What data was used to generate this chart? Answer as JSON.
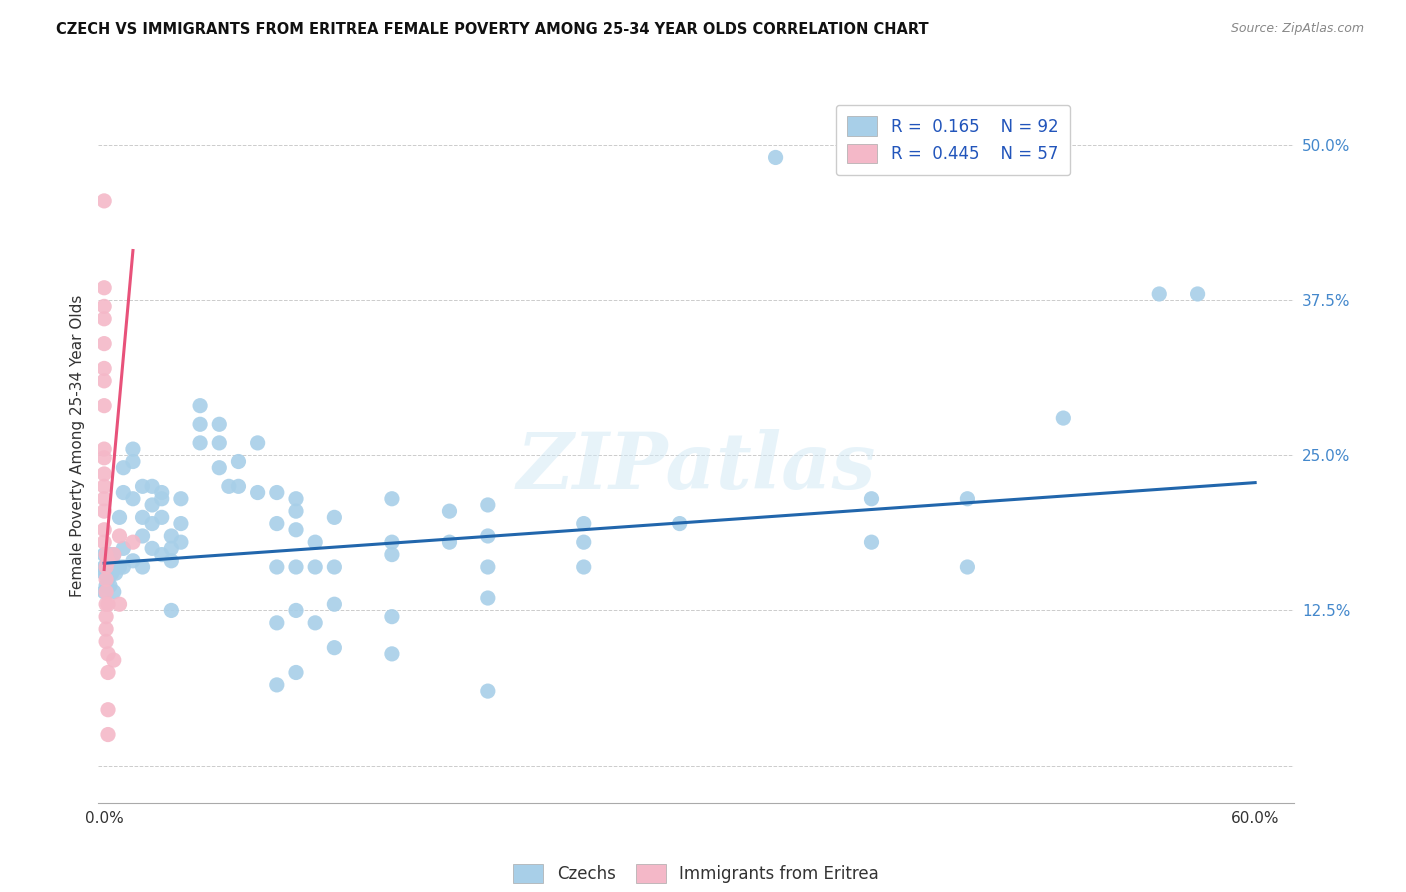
{
  "title": "CZECH VS IMMIGRANTS FROM ERITREA FEMALE POVERTY AMONG 25-34 YEAR OLDS CORRELATION CHART",
  "source": "Source: ZipAtlas.com",
  "ylabel": "Female Poverty Among 25-34 Year Olds",
  "xlim": [
    -0.003,
    0.62
  ],
  "ylim": [
    -0.03,
    0.545
  ],
  "background_color": "#ffffff",
  "grid_color": "#cccccc",
  "watermark": "ZIPatlas",
  "legend_label1": "Czechs",
  "legend_label2": "Immigrants from Eritrea",
  "blue_color": "#a8cfe8",
  "blue_line": "#2166ac",
  "pink_color": "#f4b8c8",
  "pink_line": "#e8527a",
  "blue_scatter": [
    [
      0.0,
      0.16
    ],
    [
      0.0,
      0.14
    ],
    [
      0.0,
      0.155
    ],
    [
      0.0,
      0.17
    ],
    [
      0.001,
      0.16
    ],
    [
      0.001,
      0.145
    ],
    [
      0.001,
      0.155
    ],
    [
      0.002,
      0.15
    ],
    [
      0.002,
      0.165
    ],
    [
      0.002,
      0.155
    ],
    [
      0.003,
      0.16
    ],
    [
      0.003,
      0.145
    ],
    [
      0.003,
      0.17
    ],
    [
      0.004,
      0.155
    ],
    [
      0.004,
      0.165
    ],
    [
      0.005,
      0.17
    ],
    [
      0.005,
      0.14
    ],
    [
      0.006,
      0.155
    ],
    [
      0.008,
      0.2
    ],
    [
      0.008,
      0.16
    ],
    [
      0.01,
      0.22
    ],
    [
      0.01,
      0.24
    ],
    [
      0.01,
      0.16
    ],
    [
      0.01,
      0.175
    ],
    [
      0.015,
      0.245
    ],
    [
      0.015,
      0.255
    ],
    [
      0.015,
      0.215
    ],
    [
      0.015,
      0.165
    ],
    [
      0.02,
      0.225
    ],
    [
      0.02,
      0.2
    ],
    [
      0.02,
      0.185
    ],
    [
      0.02,
      0.16
    ],
    [
      0.025,
      0.225
    ],
    [
      0.025,
      0.21
    ],
    [
      0.025,
      0.195
    ],
    [
      0.025,
      0.175
    ],
    [
      0.03,
      0.22
    ],
    [
      0.03,
      0.2
    ],
    [
      0.03,
      0.215
    ],
    [
      0.03,
      0.17
    ],
    [
      0.035,
      0.185
    ],
    [
      0.035,
      0.175
    ],
    [
      0.035,
      0.165
    ],
    [
      0.035,
      0.125
    ],
    [
      0.04,
      0.215
    ],
    [
      0.04,
      0.195
    ],
    [
      0.04,
      0.18
    ],
    [
      0.05,
      0.275
    ],
    [
      0.05,
      0.29
    ],
    [
      0.05,
      0.26
    ],
    [
      0.06,
      0.275
    ],
    [
      0.06,
      0.26
    ],
    [
      0.06,
      0.24
    ],
    [
      0.065,
      0.225
    ],
    [
      0.07,
      0.245
    ],
    [
      0.07,
      0.225
    ],
    [
      0.08,
      0.26
    ],
    [
      0.08,
      0.22
    ],
    [
      0.09,
      0.22
    ],
    [
      0.09,
      0.195
    ],
    [
      0.09,
      0.16
    ],
    [
      0.09,
      0.115
    ],
    [
      0.09,
      0.065
    ],
    [
      0.1,
      0.215
    ],
    [
      0.1,
      0.205
    ],
    [
      0.1,
      0.19
    ],
    [
      0.1,
      0.16
    ],
    [
      0.1,
      0.125
    ],
    [
      0.1,
      0.075
    ],
    [
      0.11,
      0.18
    ],
    [
      0.11,
      0.16
    ],
    [
      0.11,
      0.115
    ],
    [
      0.12,
      0.2
    ],
    [
      0.12,
      0.16
    ],
    [
      0.12,
      0.13
    ],
    [
      0.12,
      0.095
    ],
    [
      0.15,
      0.215
    ],
    [
      0.15,
      0.18
    ],
    [
      0.15,
      0.17
    ],
    [
      0.15,
      0.12
    ],
    [
      0.15,
      0.09
    ],
    [
      0.18,
      0.205
    ],
    [
      0.18,
      0.18
    ],
    [
      0.2,
      0.21
    ],
    [
      0.2,
      0.185
    ],
    [
      0.2,
      0.16
    ],
    [
      0.2,
      0.135
    ],
    [
      0.2,
      0.06
    ],
    [
      0.25,
      0.195
    ],
    [
      0.25,
      0.18
    ],
    [
      0.25,
      0.16
    ],
    [
      0.3,
      0.195
    ],
    [
      0.35,
      0.49
    ],
    [
      0.4,
      0.215
    ],
    [
      0.4,
      0.18
    ],
    [
      0.45,
      0.215
    ],
    [
      0.45,
      0.16
    ],
    [
      0.5,
      0.28
    ],
    [
      0.55,
      0.38
    ],
    [
      0.57,
      0.38
    ]
  ],
  "pink_scatter": [
    [
      0.0,
      0.455
    ],
    [
      0.0,
      0.385
    ],
    [
      0.0,
      0.37
    ],
    [
      0.0,
      0.36
    ],
    [
      0.0,
      0.34
    ],
    [
      0.0,
      0.32
    ],
    [
      0.0,
      0.31
    ],
    [
      0.0,
      0.29
    ],
    [
      0.0,
      0.255
    ],
    [
      0.0,
      0.248
    ],
    [
      0.0,
      0.235
    ],
    [
      0.0,
      0.225
    ],
    [
      0.0,
      0.215
    ],
    [
      0.0,
      0.205
    ],
    [
      0.0,
      0.19
    ],
    [
      0.0,
      0.18
    ],
    [
      0.001,
      0.17
    ],
    [
      0.001,
      0.16
    ],
    [
      0.001,
      0.15
    ],
    [
      0.001,
      0.14
    ],
    [
      0.001,
      0.13
    ],
    [
      0.001,
      0.12
    ],
    [
      0.001,
      0.11
    ],
    [
      0.001,
      0.1
    ],
    [
      0.002,
      0.165
    ],
    [
      0.002,
      0.13
    ],
    [
      0.002,
      0.09
    ],
    [
      0.002,
      0.075
    ],
    [
      0.002,
      0.045
    ],
    [
      0.002,
      0.025
    ],
    [
      0.005,
      0.17
    ],
    [
      0.005,
      0.085
    ],
    [
      0.008,
      0.185
    ],
    [
      0.008,
      0.13
    ],
    [
      0.015,
      0.18
    ]
  ],
  "blue_trend_x": [
    0.0,
    0.6
  ],
  "blue_trend_y": [
    0.163,
    0.228
  ],
  "pink_trend_x": [
    0.0,
    0.015
  ],
  "pink_trend_y": [
    0.158,
    0.415
  ]
}
